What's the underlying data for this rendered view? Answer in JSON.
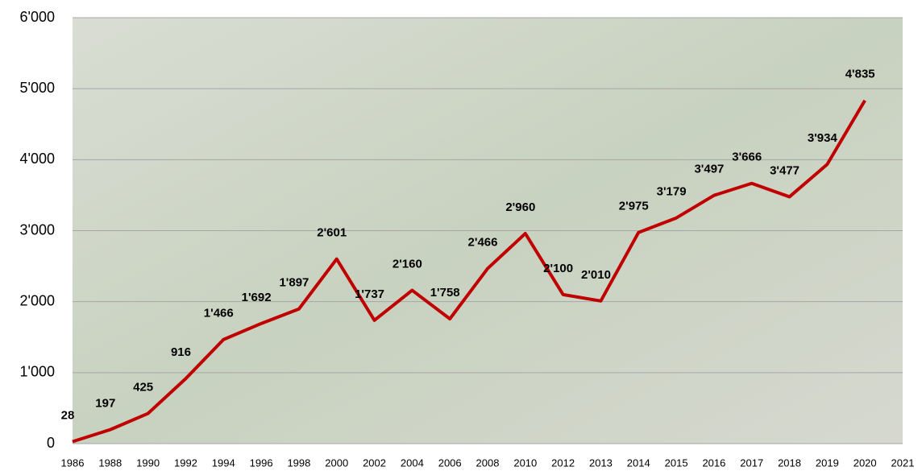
{
  "chart_data": {
    "type": "line",
    "categories": [
      "1986",
      "1988",
      "1990",
      "1992",
      "1994",
      "1996",
      "1998",
      "2000",
      "2002",
      "2004",
      "2006",
      "2008",
      "2010",
      "2012",
      "2013",
      "2014",
      "2015",
      "2016",
      "2017",
      "2018",
      "2019",
      "2020",
      "2021"
    ],
    "series": [
      {
        "color": "#c00000",
        "values": [
          28,
          197,
          425,
          916,
          1466,
          1692,
          1897,
          2601,
          1737,
          2160,
          1758,
          2466,
          2960,
          2100,
          2010,
          2975,
          3179,
          3497,
          3666,
          3477,
          3934,
          4835,
          null
        ],
        "value_labels": [
          "28",
          "197",
          "425",
          "916",
          "1'466",
          "1'692",
          "1'897",
          "2'601",
          "1'737",
          "2'160",
          "1'758",
          "2'466",
          "2'960",
          "2'100",
          "2'010",
          "2'975",
          "3'179",
          "3'497",
          "3'666",
          "3'477",
          "3'934",
          "4'835",
          null
        ]
      }
    ],
    "ylim": [
      0,
      6000
    ],
    "yticks": [
      0,
      {
        "value": 1000,
        "label": "1'000"
      },
      {
        "value": 2000,
        "label": "2'000"
      },
      {
        "value": 3000,
        "label": "3'000"
      },
      {
        "value": 4000,
        "label": "4'000"
      },
      {
        "value": 5000,
        "label": "5'000"
      },
      {
        "value": 6000,
        "label": "6'000"
      }
    ],
    "grid": true
  }
}
